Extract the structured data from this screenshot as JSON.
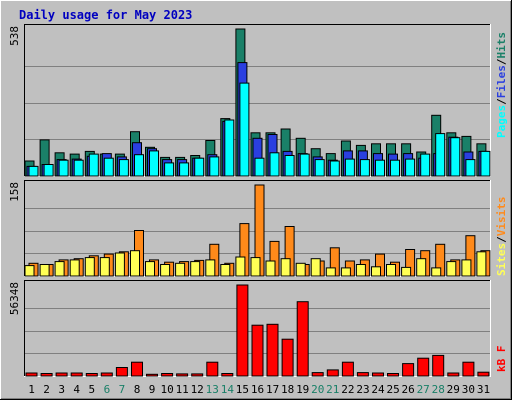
{
  "title": "Daily usage for May 2023",
  "colors": {
    "background": "#c0c0c0",
    "title": "#0000c0",
    "pages": "#00ffff",
    "files": "#2a3fe0",
    "hits": "#1a8068",
    "sites": "#ffff55",
    "visits": "#ff8a1a",
    "kbytes": "#ff0000",
    "weekend_label": "#1a8068",
    "weekday_label": "#000000"
  },
  "legend": {
    "top": [
      "Pages",
      "/",
      "Files",
      "/",
      "Hits"
    ],
    "middle": [
      "Sites",
      "/",
      "Visits"
    ],
    "bottom": [
      "kB F"
    ]
  },
  "chart_data": {
    "type": "bar",
    "title": "Daily usage for May 2023",
    "categories": [
      "1",
      "2",
      "3",
      "4",
      "5",
      "6",
      "7",
      "8",
      "9",
      "10",
      "11",
      "12",
      "13",
      "14",
      "15",
      "16",
      "17",
      "18",
      "19",
      "20",
      "21",
      "22",
      "23",
      "24",
      "25",
      "26",
      "27",
      "28",
      "29",
      "30",
      "31"
    ],
    "weekend_days": [
      "6",
      "7",
      "13",
      "14",
      "20",
      "21",
      "27",
      "28"
    ],
    "panels": [
      {
        "name": "hits-files-pages",
        "ymax": 538,
        "ymax_label": "538",
        "grid": true,
        "series": [
          {
            "name": "Hits",
            "values": [
              55,
              132,
              85,
              80,
              90,
              80,
              80,
              162,
              105,
              68,
              68,
              75,
              130,
              210,
              538,
              158,
              158,
              172,
              138,
              100,
              82,
              128,
              112,
              118,
              118,
              118,
              88,
              222,
              158,
              145,
              118
            ]
          },
          {
            "name": "Files",
            "values": [
              35,
              42,
              60,
              62,
              72,
              82,
              70,
              122,
              100,
              60,
              60,
              65,
              78,
              200,
              415,
              138,
              152,
              90,
              82,
              70,
              58,
              92,
              92,
              82,
              80,
              82,
              65,
              82,
              142,
              88,
              90
            ]
          },
          {
            "name": "Pages",
            "values": [
              35,
              42,
              58,
              58,
              80,
              65,
              60,
              78,
              92,
              48,
              48,
              65,
              70,
              205,
              340,
              65,
              85,
              75,
              80,
              60,
              55,
              62,
              60,
              58,
              58,
              62,
              80,
              155,
              140,
              60,
              90
            ]
          }
        ]
      },
      {
        "name": "visits-sites",
        "ymax": 158,
        "ymax_label": "158",
        "grid": true,
        "series": [
          {
            "name": "Visits",
            "values": [
              22,
              20,
              28,
              30,
              35,
              38,
              42,
              79,
              28,
              24,
              25,
              27,
              55,
              22,
              91,
              158,
              60,
              86,
              20,
              26,
              49,
              26,
              28,
              38,
              24,
              46,
              44,
              55,
              28,
              70,
              44
            ]
          },
          {
            "name": "Sites",
            "values": [
              18,
              20,
              25,
              28,
              32,
              32,
              40,
              44,
              25,
              20,
              22,
              25,
              28,
              20,
              33,
              32,
              26,
              30,
              22,
              30,
              14,
              14,
              20,
              16,
              20,
              15,
              30,
              14,
              25,
              28,
              42
            ]
          }
        ]
      },
      {
        "name": "kbytes",
        "ymax": 56348,
        "ymax_label": "56348",
        "grid": true,
        "series": [
          {
            "name": "KBytes",
            "values": [
              1830,
              1570,
              1830,
              1830,
              1570,
              1830,
              5270,
              8520,
              1040,
              1570,
              1300,
              1300,
              8520,
              1570,
              56348,
              31470,
              32000,
              22800,
              46000,
              2090,
              3800,
              8520,
              2090,
              1830,
              1570,
              7650,
              11050,
              12770,
              1830,
              8520,
              2350
            ]
          }
        ]
      }
    ]
  }
}
